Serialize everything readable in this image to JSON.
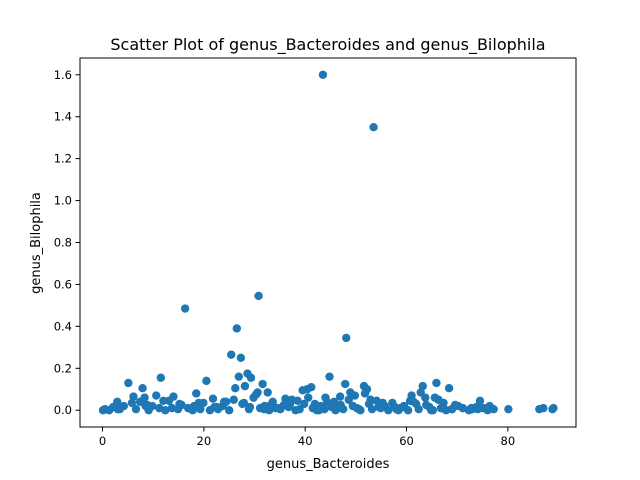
{
  "chart_data": {
    "type": "scatter",
    "title": "Scatter Plot of genus_Bacteroides and genus_Bilophila",
    "xlabel": "genus_Bacteroides",
    "ylabel": "genus_Bilophila",
    "xlim": [
      -4.45,
      93.45
    ],
    "ylim": [
      -0.08,
      1.68
    ],
    "xticks": [
      0,
      20,
      40,
      60,
      80
    ],
    "xtick_labels": [
      "0",
      "20",
      "40",
      "60",
      "80"
    ],
    "yticks": [
      0.0,
      0.2,
      0.4,
      0.6,
      0.8,
      1.0,
      1.2,
      1.4,
      1.6
    ],
    "ytick_labels": [
      "0.0",
      "0.2",
      "0.4",
      "0.6",
      "0.8",
      "1.0",
      "1.2",
      "1.4",
      "1.6"
    ],
    "grid": false,
    "marker_color": "#1f77b4",
    "x": [
      43.5,
      53.5,
      16.3,
      30.8,
      26.5,
      48.1,
      25.4,
      27.3,
      28.6,
      29.3,
      44.8,
      26.9,
      31.6,
      20.5,
      11.5,
      5.1,
      7.9,
      26.2,
      28.1,
      32.6,
      41.2,
      40.4,
      39.5,
      47.9,
      51.6,
      52.2,
      48.9,
      62.8,
      65.9,
      63.2,
      68.4,
      71.1,
      74.5,
      87.0,
      86.2,
      89.0,
      88.8,
      80.1,
      75.8,
      0.1,
      0.5,
      1.3,
      2.1,
      2.9,
      3.4,
      4.2,
      5.8,
      6.6,
      7.4,
      8.3,
      9.1,
      9.8,
      10.6,
      11.2,
      12.4,
      13.1,
      14.0,
      14.9,
      15.6,
      16.9,
      17.8,
      18.5,
      19.3,
      19.9,
      21.2,
      22.1,
      22.8,
      23.7,
      24.4,
      25.0,
      25.9,
      27.6,
      28.9,
      29.8,
      30.3,
      31.1,
      32.0,
      32.9,
      33.6,
      34.2,
      35.1,
      35.8,
      36.7,
      37.4,
      38.1,
      38.9,
      39.8,
      40.6,
      41.5,
      42.3,
      43.0,
      43.8,
      44.3,
      45.2,
      46.0,
      46.9,
      47.5,
      48.6,
      49.4,
      50.2,
      50.9,
      51.8,
      52.6,
      53.2,
      54.1,
      54.9,
      55.7,
      56.4,
      57.2,
      58.0,
      58.8,
      59.5,
      60.3,
      61.0,
      61.9,
      62.4,
      63.7,
      64.5,
      65.2,
      66.3,
      67.0,
      67.8,
      68.9,
      69.6,
      72.3,
      73.0,
      73.8,
      75.1,
      76.4,
      77.2,
      3.0,
      6.1,
      8.8,
      12.0,
      15.2,
      18.1,
      21.8,
      24.0,
      27.9,
      29.1,
      30.6,
      33.2,
      36.1,
      38.5,
      41.9,
      44.0,
      45.7,
      47.0,
      49.8,
      52.9,
      55.3,
      57.7,
      60.7,
      63.9,
      65.6,
      67.3,
      70.2,
      72.8,
      74.1,
      8.5,
      13.7,
      19.0,
      22.5,
      31.9,
      34.7,
      37.0,
      42.7,
      46.5,
      50.6,
      54.5,
      58.4,
      61.4,
      64.9,
      66.8,
      69.0,
      76.0
    ],
    "y": [
      1.6,
      1.35,
      0.485,
      0.545,
      0.39,
      0.345,
      0.265,
      0.25,
      0.175,
      0.155,
      0.16,
      0.16,
      0.125,
      0.14,
      0.155,
      0.13,
      0.105,
      0.105,
      0.115,
      0.085,
      0.11,
      0.1,
      0.095,
      0.125,
      0.115,
      0.1,
      0.085,
      0.085,
      0.13,
      0.115,
      0.105,
      0.01,
      0.045,
      0.01,
      0.005,
      0.01,
      0.005,
      0.005,
      0.01,
      0.0,
      0.005,
      0.0,
      0.015,
      0.04,
      0.005,
      0.02,
      0.035,
      0.005,
      0.04,
      0.06,
      0.0,
      0.02,
      0.07,
      0.01,
      0.0,
      0.045,
      0.065,
      0.005,
      0.025,
      0.01,
      0.0,
      0.08,
      0.005,
      0.035,
      0.0,
      0.015,
      0.005,
      0.02,
      0.04,
      0.0,
      0.05,
      0.03,
      0.005,
      0.06,
      0.075,
      0.01,
      0.02,
      0.0,
      0.04,
      0.01,
      0.005,
      0.025,
      0.015,
      0.05,
      0.0,
      0.005,
      0.03,
      0.06,
      0.01,
      0.0,
      0.02,
      0.005,
      0.04,
      0.015,
      0.0,
      0.065,
      0.005,
      0.05,
      0.02,
      0.01,
      0.0,
      0.08,
      0.03,
      0.005,
      0.045,
      0.01,
      0.02,
      0.0,
      0.035,
      0.005,
      0.01,
      0.02,
      0.0,
      0.07,
      0.03,
      0.005,
      0.06,
      0.015,
      0.0,
      0.05,
      0.01,
      0.0,
      0.005,
      0.025,
      0.0,
      0.005,
      0.015,
      0.01,
      0.02,
      0.005,
      0.005,
      0.065,
      0.025,
      0.045,
      0.03,
      0.02,
      0.055,
      0.04,
      0.035,
      0.015,
      0.085,
      0.025,
      0.055,
      0.045,
      0.03,
      0.06,
      0.04,
      0.025,
      0.07,
      0.05,
      0.035,
      0.015,
      0.045,
      0.025,
      0.06,
      0.035,
      0.02,
      0.01,
      0.005,
      0.02,
      0.01,
      0.035,
      0.015,
      0.005,
      0.01,
      0.03,
      0.0,
      0.01,
      0.005,
      0.015,
      0.0,
      0.04,
      0.0,
      0.01,
      0.005,
      0.0
    ]
  }
}
